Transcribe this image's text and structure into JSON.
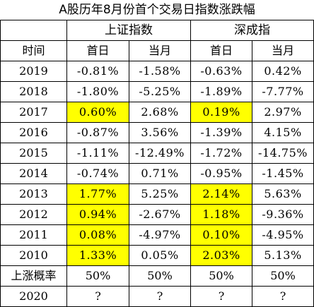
{
  "title": "A股历年8月份首个交易日指数涨跌幅",
  "header": {
    "group_sh": "上证指数",
    "group_sz": "深成指",
    "col_time": "时间",
    "col_sh_day": "首日",
    "col_sh_month": "当月",
    "col_sz_day": "首日",
    "col_sz_month": "当月"
  },
  "rows": [
    {
      "year": "2019",
      "sh_day": "-0.81%",
      "sh_month": "-1.58%",
      "sz_day": "-0.63%",
      "sz_month": "0.42%"
    },
    {
      "year": "2018",
      "sh_day": "-1.80%",
      "sh_month": "-5.25%",
      "sz_day": "-1.89%",
      "sz_month": "-7.77%"
    },
    {
      "year": "2017",
      "sh_day": "0.60%",
      "sh_month": "2.68%",
      "sz_day": "0.19%",
      "sz_month": "2.97%"
    },
    {
      "year": "2016",
      "sh_day": "-0.87%",
      "sh_month": "3.56%",
      "sz_day": "-1.39%",
      "sz_month": "4.15%"
    },
    {
      "year": "2015",
      "sh_day": "-1.11%",
      "sh_month": "-12.49%",
      "sz_day": "-1.72%",
      "sz_month": "-14.75%"
    },
    {
      "year": "2014",
      "sh_day": "-0.74%",
      "sh_month": "0.71%",
      "sz_day": "-0.95%",
      "sz_month": "-1.45%"
    },
    {
      "year": "2013",
      "sh_day": "1.77%",
      "sh_month": "5.25%",
      "sz_day": "2.14%",
      "sz_month": "5.63%"
    },
    {
      "year": "2012",
      "sh_day": "0.94%",
      "sh_month": "-2.67%",
      "sz_day": "1.18%",
      "sz_month": "-9.36%"
    },
    {
      "year": "2011",
      "sh_day": "0.08%",
      "sh_month": "-4.97%",
      "sz_day": "0.10%",
      "sz_month": "-4.95%"
    },
    {
      "year": "2010",
      "sh_day": "1.33%",
      "sh_month": "0.05%",
      "sz_day": "2.03%",
      "sz_month": "5.13%"
    }
  ],
  "probability": {
    "label": "上涨概率",
    "sh_day": "50%",
    "sh_month": "50%",
    "sz_day": "50%",
    "sz_month": "50%"
  },
  "forecast": {
    "year": "2020",
    "sh_day": "?",
    "sh_month": "?",
    "sz_day": "?",
    "sz_month": "?"
  },
  "colors": {
    "highlight": "#ffff00",
    "border": "#000000",
    "text": "#000000"
  }
}
